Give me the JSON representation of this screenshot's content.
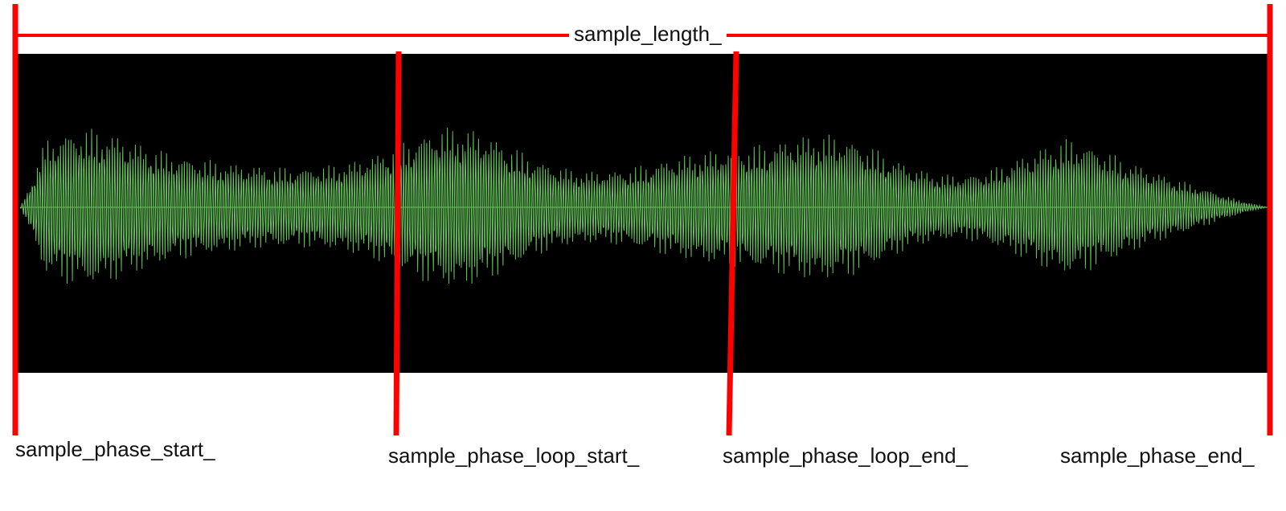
{
  "labels": {
    "sample_length": "sample_length_",
    "phase_start": "sample_phase_start_",
    "phase_loop_start": "sample_phase_loop_start_",
    "phase_loop_end": "sample_phase_loop_end_",
    "phase_end": "sample_phase_end_"
  },
  "colors": {
    "marker": "#ff0000",
    "waveform": "#66c35a",
    "waveform_bg": "#000000",
    "text": "#111111"
  }
}
